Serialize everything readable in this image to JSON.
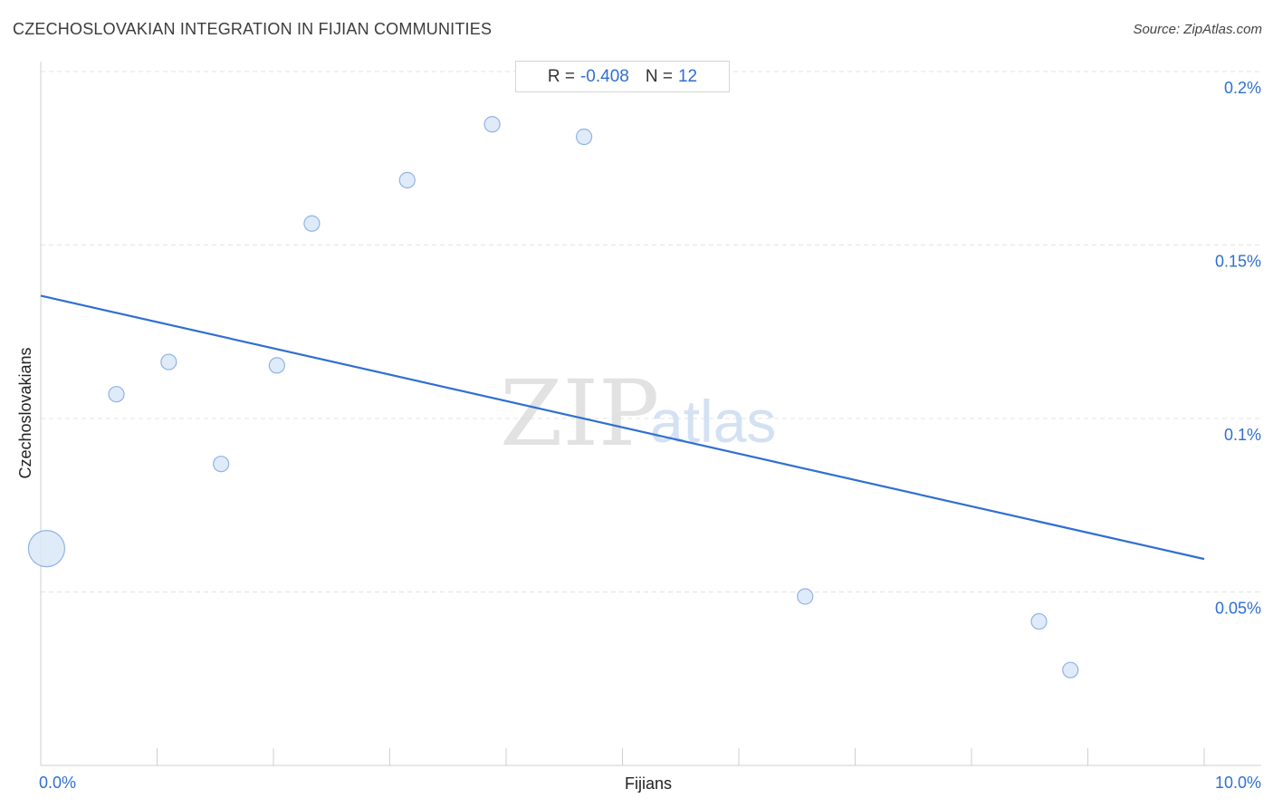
{
  "header": {
    "title": "CZECHOSLOVAKIAN INTEGRATION IN FIJIAN COMMUNITIES",
    "source": "Source: ZipAtlas.com"
  },
  "stats": {
    "r_label": "R =",
    "r_value": "-0.408",
    "n_label": "N =",
    "n_value": "12"
  },
  "watermark": {
    "zip": "ZIP",
    "atlas": "atlas"
  },
  "colors": {
    "accent": "#2f6fd1",
    "point_fill": "#dbe8f8",
    "point_stroke": "#8fb3e6",
    "grid": "#e3e3e3"
  },
  "chart_data": {
    "type": "scatter",
    "title": "CZECHOSLOVAKIAN INTEGRATION IN FIJIAN COMMUNITIES",
    "xlabel": "Fijians",
    "ylabel": "Czechoslovakians",
    "xlim": [
      0,
      10
    ],
    "ylim": [
      0.0,
      0.2
    ],
    "x_tick_labels": [
      "0.0%",
      "10.0%"
    ],
    "y_ticks": [
      {
        "value": 0.2,
        "label": "0.2%"
      },
      {
        "value": 0.15,
        "label": "0.15%"
      },
      {
        "value": 0.1,
        "label": "0.1%"
      },
      {
        "value": 0.05,
        "label": "0.05%"
      }
    ],
    "grid": true,
    "points": [
      {
        "x": 0.05,
        "y": 0.0625,
        "size": "large"
      },
      {
        "x": 0.65,
        "y": 0.107
      },
      {
        "x": 1.1,
        "y": 0.1163
      },
      {
        "x": 1.55,
        "y": 0.0869
      },
      {
        "x": 2.03,
        "y": 0.1153
      },
      {
        "x": 2.33,
        "y": 0.1562
      },
      {
        "x": 3.15,
        "y": 0.1687
      },
      {
        "x": 3.88,
        "y": 0.1848
      },
      {
        "x": 4.67,
        "y": 0.1812
      },
      {
        "x": 6.57,
        "y": 0.0487
      },
      {
        "x": 8.58,
        "y": 0.0415
      },
      {
        "x": 8.85,
        "y": 0.0275
      }
    ],
    "trendline": {
      "x": [
        0,
        10
      ],
      "y": [
        0.1354,
        0.0595
      ]
    },
    "stats": {
      "R": -0.408,
      "N": 12
    }
  }
}
